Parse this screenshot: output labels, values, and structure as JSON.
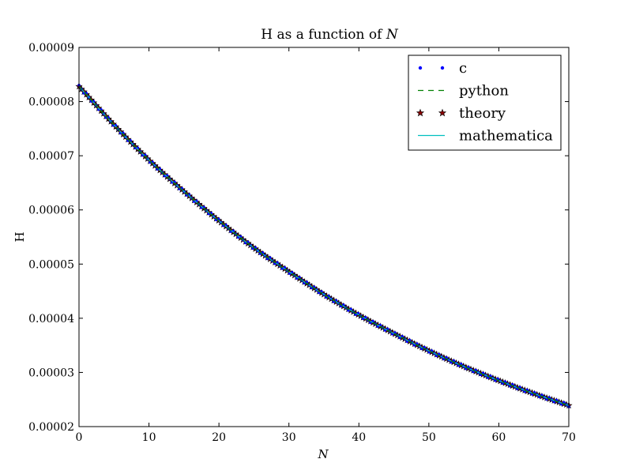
{
  "chart_data": {
    "type": "line",
    "title": "H as a function of N",
    "title_parts": {
      "prefix": "H as a function of ",
      "var": "N"
    },
    "xlabel": "N",
    "ylabel": "H",
    "xlim": [
      0,
      70
    ],
    "ylim": [
      2e-05,
      9e-05
    ],
    "x_ticks": [
      0,
      10,
      20,
      30,
      40,
      50,
      60,
      70
    ],
    "x_tick_labels": [
      "0",
      "10",
      "20",
      "30",
      "40",
      "50",
      "60",
      "70"
    ],
    "y_ticks": [
      2e-05,
      3e-05,
      4e-05,
      5e-05,
      6e-05,
      7e-05,
      8e-05,
      9e-05
    ],
    "y_tick_labels": [
      "0.00002",
      "0.00003",
      "0.00004",
      "0.00005",
      "0.00006",
      "0.00007",
      "0.00008",
      "0.00009"
    ],
    "grid": false,
    "legend_position": "top-right",
    "x": [
      0,
      5,
      10,
      15,
      20,
      25,
      30,
      35,
      40,
      45,
      50,
      55,
      60,
      65,
      70
    ],
    "series": [
      {
        "name": "c",
        "style": "dots",
        "color": "#0000ff",
        "values": [
          8.28e-05,
          7.57e-05,
          6.92e-05,
          6.34e-05,
          5.8e-05,
          5.3e-05,
          4.86e-05,
          4.44e-05,
          4.06e-05,
          3.72e-05,
          3.4e-05,
          3.11e-05,
          2.85e-05,
          2.61e-05,
          2.39e-05
        ]
      },
      {
        "name": "python",
        "style": "dashed",
        "color": "#008000",
        "values": [
          8.28e-05,
          7.57e-05,
          6.92e-05,
          6.34e-05,
          5.8e-05,
          5.3e-05,
          4.86e-05,
          4.44e-05,
          4.06e-05,
          3.72e-05,
          3.4e-05,
          3.11e-05,
          2.85e-05,
          2.61e-05,
          2.39e-05
        ]
      },
      {
        "name": "theory",
        "style": "stars",
        "color": "#8b0000",
        "values": [
          8.28e-05,
          7.57e-05,
          6.92e-05,
          6.34e-05,
          5.8e-05,
          5.3e-05,
          4.86e-05,
          4.44e-05,
          4.06e-05,
          3.72e-05,
          3.4e-05,
          3.11e-05,
          2.85e-05,
          2.61e-05,
          2.39e-05
        ]
      },
      {
        "name": "mathematica",
        "style": "solid",
        "color": "#00bfbf",
        "values": [
          8.28e-05,
          7.57e-05,
          6.92e-05,
          6.34e-05,
          5.8e-05,
          5.3e-05,
          4.86e-05,
          4.44e-05,
          4.06e-05,
          3.72e-05,
          3.4e-05,
          3.11e-05,
          2.85e-05,
          2.61e-05,
          2.39e-05
        ]
      }
    ]
  }
}
